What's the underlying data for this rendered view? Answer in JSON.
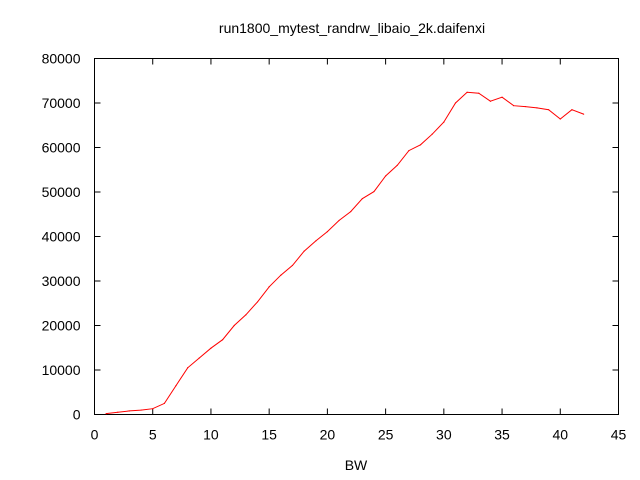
{
  "chart_data": {
    "type": "line",
    "title": "run1800_mytest_randrw_libaio_2k.daifenxi",
    "xlabel": "BW",
    "ylabel": "",
    "xlim": [
      0,
      45
    ],
    "ylim": [
      0,
      80000
    ],
    "x_ticks": [
      0,
      5,
      10,
      15,
      20,
      25,
      30,
      35,
      40,
      45
    ],
    "y_ticks": [
      0,
      10000,
      20000,
      30000,
      40000,
      50000,
      60000,
      70000,
      80000
    ],
    "grid": false,
    "legend": "none",
    "series": [
      {
        "color": "#ff0000",
        "x": [
          1,
          2,
          3,
          4,
          5,
          6,
          7,
          8,
          9,
          10,
          11,
          12,
          13,
          14,
          15,
          16,
          17,
          18,
          19,
          20,
          21,
          22,
          23,
          24,
          25,
          26,
          27,
          28,
          29,
          30,
          31,
          32,
          33,
          34,
          35,
          36,
          37,
          38,
          39,
          40,
          41,
          42
        ],
        "y": [
          200,
          500,
          800,
          1000,
          1300,
          2500,
          6500,
          10500,
          12700,
          14900,
          16800,
          20000,
          22400,
          25300,
          28700,
          31300,
          33500,
          36700,
          39000,
          41100,
          43600,
          45600,
          48500,
          50100,
          53600,
          56000,
          59300,
          60600,
          63000,
          65700,
          70000,
          72400,
          72200,
          70400,
          71300,
          69400,
          69200,
          68900,
          68500,
          66400,
          68500,
          67500
        ]
      }
    ]
  }
}
